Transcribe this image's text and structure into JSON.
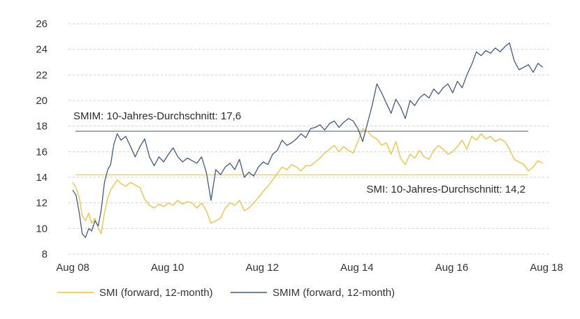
{
  "chart_data": {
    "type": "line",
    "title": "",
    "xlabel": "",
    "ylabel": "",
    "ylim": [
      8,
      26
    ],
    "yticks": [
      8,
      10,
      12,
      14,
      16,
      18,
      20,
      22,
      24,
      26
    ],
    "xlim": [
      2008.55,
      2018.55
    ],
    "xticks": [
      {
        "label": "Aug 08",
        "x": 2008.58
      },
      {
        "label": "Aug 10",
        "x": 2010.58
      },
      {
        "label": "Aug 12",
        "x": 2012.58
      },
      {
        "label": "Aug 14",
        "x": 2014.58
      },
      {
        "label": "Aug 16",
        "x": 2016.58
      },
      {
        "label": "Aug 18",
        "x": 2018.58
      }
    ],
    "grid": "horizontal-dashed",
    "legend": "bottom-left",
    "colors": {
      "smi": "#f2c12e",
      "smim": "#3e5a85",
      "grid": "#cfcfcf"
    },
    "series": [
      {
        "name": "SMI (forward, 12-month)",
        "color": "#f2c12e",
        "x": [
          2008.58,
          2008.65,
          2008.72,
          2008.78,
          2008.85,
          2008.92,
          2008.98,
          2009.05,
          2009.12,
          2009.18,
          2009.25,
          2009.32,
          2009.38,
          2009.45,
          2009.52,
          2009.6,
          2009.7,
          2009.8,
          2009.9,
          2010.0,
          2010.1,
          2010.2,
          2010.3,
          2010.4,
          2010.5,
          2010.6,
          2010.7,
          2010.8,
          2010.9,
          2011.0,
          2011.1,
          2011.2,
          2011.3,
          2011.4,
          2011.5,
          2011.6,
          2011.7,
          2011.8,
          2011.9,
          2012.0,
          2012.1,
          2012.2,
          2012.3,
          2012.4,
          2012.5,
          2012.6,
          2012.7,
          2012.8,
          2012.9,
          2013.0,
          2013.1,
          2013.2,
          2013.3,
          2013.4,
          2013.5,
          2013.6,
          2013.7,
          2013.8,
          2013.9,
          2014.0,
          2014.1,
          2014.2,
          2014.3,
          2014.4,
          2014.5,
          2014.6,
          2014.7,
          2014.8,
          2014.9,
          2015.0,
          2015.1,
          2015.2,
          2015.3,
          2015.4,
          2015.5,
          2015.6,
          2015.7,
          2015.8,
          2015.9,
          2016.0,
          2016.1,
          2016.2,
          2016.3,
          2016.4,
          2016.5,
          2016.6,
          2016.7,
          2016.8,
          2016.9,
          2017.0,
          2017.1,
          2017.2,
          2017.3,
          2017.4,
          2017.5,
          2017.6,
          2017.7,
          2017.8,
          2017.9,
          2018.0,
          2018.1,
          2018.2,
          2018.3,
          2018.4,
          2018.5
        ],
        "values": [
          13.6,
          13.2,
          12.4,
          11.0,
          10.6,
          11.2,
          10.4,
          10.8,
          10.0,
          9.6,
          11.2,
          12.4,
          13.0,
          13.4,
          13.8,
          13.5,
          13.3,
          13.6,
          13.4,
          13.2,
          12.3,
          11.8,
          11.6,
          11.9,
          11.7,
          12.0,
          11.8,
          12.2,
          11.9,
          12.1,
          12.0,
          11.6,
          12.0,
          11.4,
          10.4,
          10.6,
          10.8,
          11.6,
          12.0,
          11.8,
          12.2,
          11.4,
          11.6,
          12.0,
          12.4,
          12.9,
          13.3,
          13.8,
          14.3,
          14.8,
          14.6,
          15.0,
          14.8,
          14.5,
          14.9,
          14.9,
          15.2,
          15.5,
          15.9,
          16.2,
          16.5,
          16.0,
          16.4,
          16.1,
          15.9,
          16.8,
          17.8,
          17.6,
          17.2,
          17.0,
          16.5,
          16.7,
          15.8,
          16.8,
          15.5,
          15.0,
          15.8,
          15.5,
          16.1,
          15.6,
          15.4,
          16.1,
          16.5,
          16.2,
          15.8,
          16.0,
          16.4,
          16.9,
          16.2,
          17.2,
          16.9,
          17.4,
          17.0,
          17.2,
          16.8,
          17.0,
          16.8,
          16.2,
          15.4,
          15.2,
          15.0,
          14.5,
          14.8,
          15.3,
          15.1
        ]
      },
      {
        "name": "SMIM (forward, 12-month)",
        "color": "#3e5a85",
        "x": [
          2008.58,
          2008.65,
          2008.72,
          2008.78,
          2008.85,
          2008.92,
          2008.98,
          2009.05,
          2009.12,
          2009.18,
          2009.25,
          2009.32,
          2009.38,
          2009.45,
          2009.52,
          2009.6,
          2009.7,
          2009.8,
          2009.9,
          2010.0,
          2010.1,
          2010.2,
          2010.3,
          2010.4,
          2010.5,
          2010.6,
          2010.7,
          2010.8,
          2010.9,
          2011.0,
          2011.1,
          2011.2,
          2011.3,
          2011.4,
          2011.5,
          2011.6,
          2011.7,
          2011.8,
          2011.9,
          2012.0,
          2012.1,
          2012.2,
          2012.3,
          2012.4,
          2012.5,
          2012.6,
          2012.7,
          2012.8,
          2012.9,
          2013.0,
          2013.1,
          2013.2,
          2013.3,
          2013.4,
          2013.5,
          2013.6,
          2013.7,
          2013.8,
          2013.9,
          2014.0,
          2014.1,
          2014.2,
          2014.3,
          2014.4,
          2014.5,
          2014.6,
          2014.7,
          2014.8,
          2014.9,
          2015.0,
          2015.1,
          2015.2,
          2015.3,
          2015.4,
          2015.5,
          2015.6,
          2015.7,
          2015.8,
          2015.9,
          2016.0,
          2016.1,
          2016.2,
          2016.3,
          2016.4,
          2016.5,
          2016.6,
          2016.7,
          2016.8,
          2016.9,
          2017.0,
          2017.1,
          2017.2,
          2017.3,
          2017.4,
          2017.5,
          2017.6,
          2017.7,
          2017.8,
          2017.9,
          2018.0,
          2018.1,
          2018.2,
          2018.3,
          2018.4,
          2018.5
        ],
        "values": [
          13.0,
          12.6,
          11.2,
          9.6,
          9.3,
          10.0,
          9.8,
          10.6,
          10.2,
          11.4,
          13.6,
          14.6,
          15.0,
          16.6,
          17.4,
          16.9,
          17.2,
          16.4,
          15.6,
          16.4,
          17.0,
          15.6,
          14.9,
          15.6,
          15.2,
          15.8,
          16.3,
          15.6,
          15.2,
          15.5,
          15.3,
          15.1,
          15.6,
          14.4,
          12.2,
          14.6,
          14.2,
          14.8,
          15.1,
          14.6,
          15.4,
          14.0,
          14.4,
          14.1,
          14.8,
          15.2,
          15.0,
          15.8,
          16.1,
          16.9,
          16.5,
          16.7,
          17.0,
          17.4,
          17.1,
          17.8,
          17.9,
          18.1,
          17.7,
          18.2,
          18.4,
          17.9,
          18.3,
          18.6,
          18.4,
          17.8,
          16.8,
          18.2,
          19.6,
          21.3,
          20.6,
          19.8,
          19.0,
          20.1,
          19.5,
          18.6,
          20.0,
          19.6,
          20.2,
          20.5,
          20.2,
          20.9,
          20.5,
          21.0,
          21.3,
          20.6,
          21.5,
          21.0,
          22.0,
          22.8,
          23.8,
          23.5,
          23.9,
          23.7,
          24.1,
          23.8,
          24.2,
          24.5,
          23.1,
          22.4,
          22.6,
          22.8,
          22.2,
          22.9,
          22.6
        ]
      }
    ],
    "reference_lines": [
      {
        "label": "SMIM: 10-Jahres-Durchschnitt: 17,6",
        "value": 17.6,
        "color": "#3e5a85"
      },
      {
        "label": "SMI: 10-Jahres-Durchschnitt: 14,2",
        "value": 14.2,
        "color": "#f2c12e"
      }
    ]
  }
}
